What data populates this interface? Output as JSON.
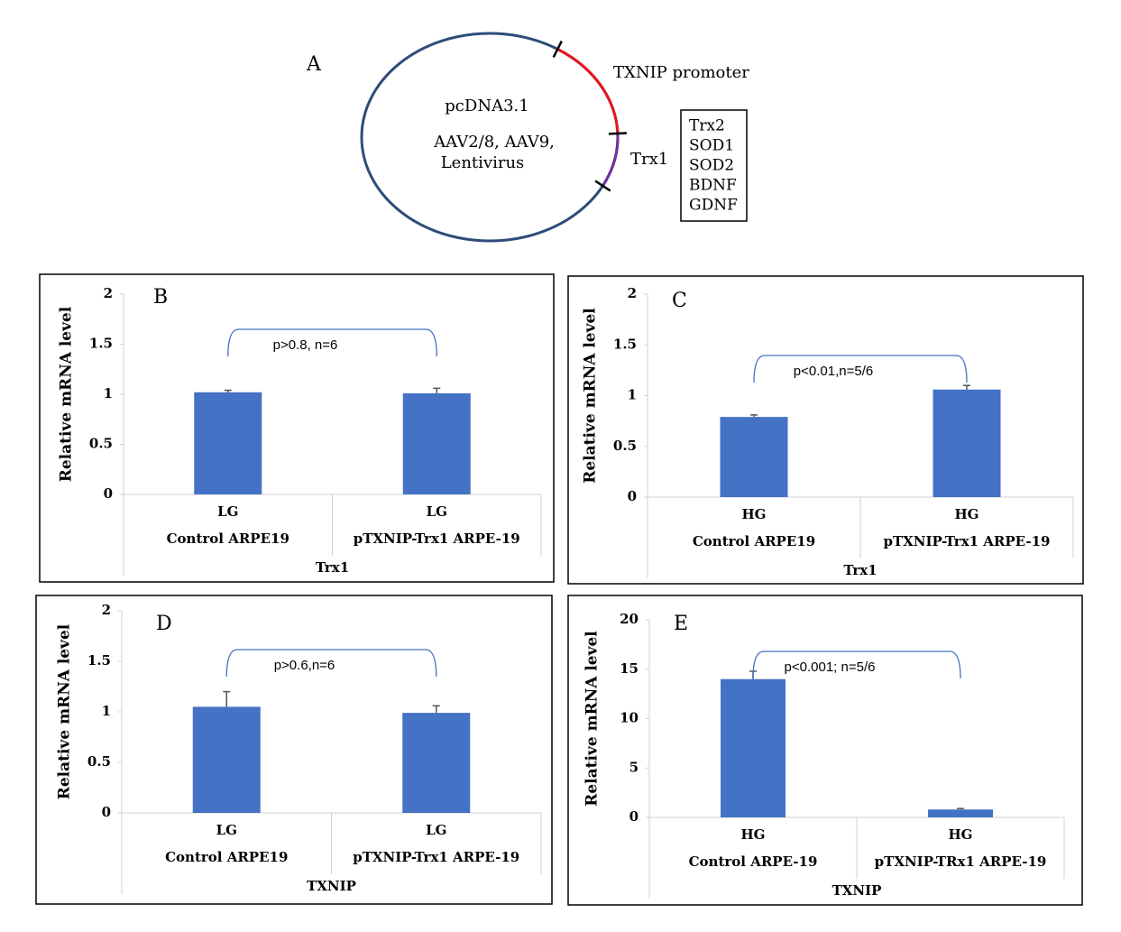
{
  "diagram": {
    "panel_label": "A",
    "plasmid_lines": [
      "pcDNA3.1",
      "AAV2/8, AAV9,",
      "Lentivirus"
    ],
    "promoter_label": "TXNIP promoter",
    "gene_label": "Trx1",
    "genes": [
      "Trx2",
      "SOD1",
      "SOD2",
      "BDNF",
      "GDNF"
    ]
  },
  "chart_data": [
    {
      "type": "bar",
      "panel_label": "B",
      "y_label": "Relative mRNA level",
      "x_label": "Trx1",
      "categories": [
        "LG",
        "LG"
      ],
      "groups": [
        "Control ARPE19",
        "pTXNIP-Trx1 ARPE-19"
      ],
      "values": [
        1.02,
        1.01
      ],
      "errors": [
        0.02,
        0.05
      ],
      "annotation": "p>0.8, n=6",
      "color": "#4472c4",
      "ylim": [
        0,
        2
      ],
      "yticks": [
        0,
        0.5,
        1,
        1.5,
        2
      ]
    },
    {
      "type": "bar",
      "panel_label": "C",
      "y_label": "Relative mRNA level",
      "x_label": "Trx1",
      "categories": [
        "HG",
        "HG"
      ],
      "groups": [
        "Control ARPE19",
        "pTXNIP-Trx1 ARPE-19"
      ],
      "values": [
        0.79,
        1.06
      ],
      "errors": [
        0.02,
        0.04
      ],
      "annotation": "p<0.01,n=5/6",
      "color": "#4472c4",
      "ylim": [
        0,
        2
      ],
      "yticks": [
        0,
        0.5,
        1,
        1.5,
        2
      ]
    },
    {
      "type": "bar",
      "panel_label": "D",
      "y_label": "Relative mRNA level",
      "x_label": "TXNIP",
      "categories": [
        "LG",
        "LG"
      ],
      "groups": [
        "Control ARPE19",
        "pTXNIP-Trx1 ARPE-19"
      ],
      "values": [
        1.05,
        0.99
      ],
      "errors": [
        0.15,
        0.07
      ],
      "annotation": "p>0.6,n=6",
      "color": "#4472c4",
      "ylim": [
        0,
        2
      ],
      "yticks": [
        0,
        0.5,
        1,
        1.5,
        2
      ]
    },
    {
      "type": "bar",
      "panel_label": "E",
      "y_label": "Relative mRNA level",
      "x_label": "TXNIP",
      "categories": [
        "HG",
        "HG"
      ],
      "groups": [
        "Control ARPE-19",
        "pTXNIP-TRx1 ARPE-19"
      ],
      "values": [
        14.0,
        0.8
      ],
      "errors": [
        0.8,
        0.1
      ],
      "annotation": "p<0.001; n=5/6",
      "color": "#4472c4",
      "ylim": [
        0,
        20
      ],
      "yticks": [
        0,
        5,
        10,
        15,
        20
      ]
    }
  ]
}
